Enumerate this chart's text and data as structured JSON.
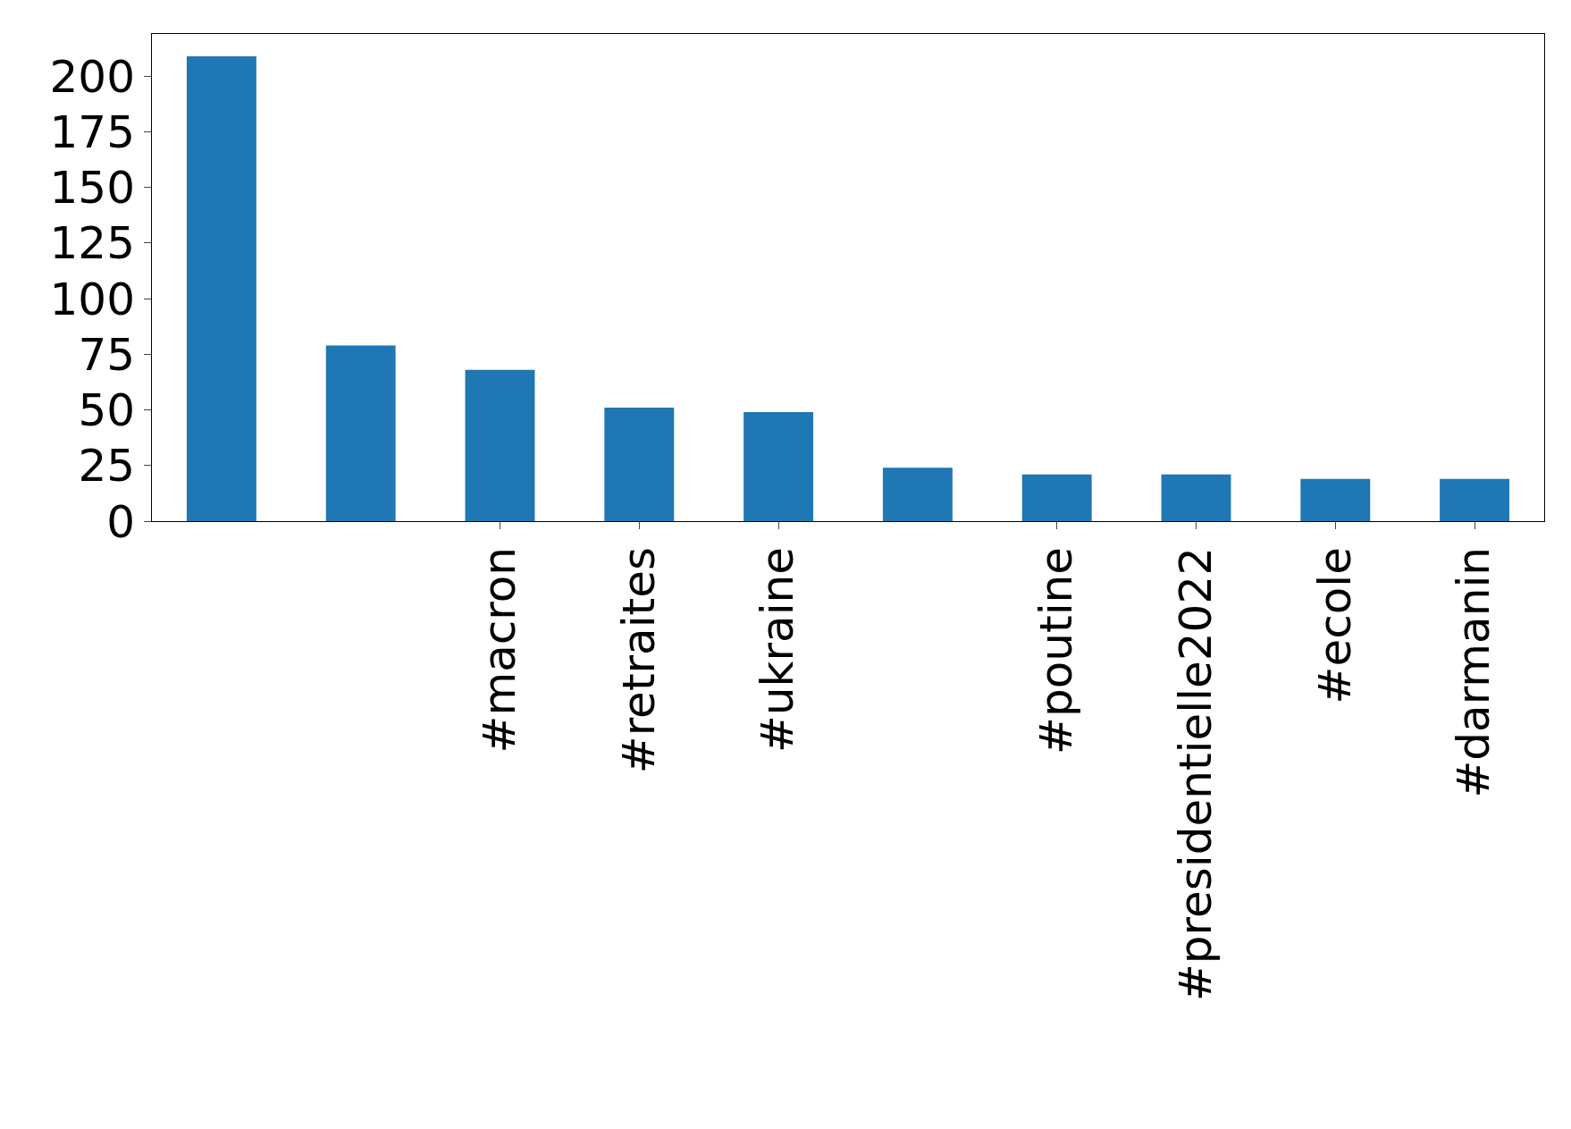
{
  "chart_data": {
    "type": "bar",
    "categories": [
      null,
      null,
      "#macron",
      "#retraites",
      "#ukraine",
      null,
      "#poutine",
      "#presidentielle2022",
      "#ecole",
      "#darmanin"
    ],
    "values": [
      209,
      79,
      68,
      51,
      49,
      24,
      21,
      21,
      19,
      19
    ],
    "color": "#1f77b4",
    "ylim": [
      0,
      219
    ],
    "yticks": [
      0,
      25,
      50,
      75,
      100,
      125,
      150,
      175,
      200
    ],
    "grid": false
  }
}
